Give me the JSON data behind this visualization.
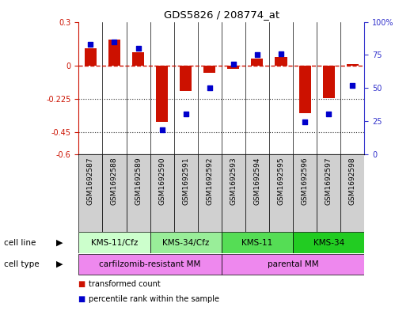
{
  "title": "GDS5826 / 208774_at",
  "samples": [
    "GSM1692587",
    "GSM1692588",
    "GSM1692589",
    "GSM1692590",
    "GSM1692591",
    "GSM1692592",
    "GSM1692593",
    "GSM1692594",
    "GSM1692595",
    "GSM1692596",
    "GSM1692597",
    "GSM1692598"
  ],
  "transformed_count": [
    0.12,
    0.18,
    0.09,
    -0.38,
    -0.17,
    -0.05,
    -0.02,
    0.05,
    0.06,
    -0.32,
    -0.22,
    0.01
  ],
  "percentile_rank": [
    83,
    85,
    80,
    18,
    30,
    50,
    68,
    75,
    76,
    24,
    30,
    52
  ],
  "ylim_left": [
    -0.6,
    0.3
  ],
  "ylim_right": [
    0,
    100
  ],
  "yticks_left": [
    0.3,
    0.0,
    -0.225,
    -0.45,
    -0.6
  ],
  "ytick_labels_left": [
    "0.3",
    "0",
    "-0.225",
    "-0.45",
    "-0.6"
  ],
  "yticks_right": [
    100,
    75,
    50,
    25,
    0
  ],
  "ytick_labels_right": [
    "100%",
    "75",
    "50",
    "25",
    "0"
  ],
  "hlines_dotted": [
    -0.225,
    -0.45
  ],
  "cell_line_groups": [
    {
      "label": "KMS-11/Cfz",
      "start": 0,
      "end": 3,
      "color": "#ccffcc"
    },
    {
      "label": "KMS-34/Cfz",
      "start": 3,
      "end": 6,
      "color": "#99ee99"
    },
    {
      "label": "KMS-11",
      "start": 6,
      "end": 9,
      "color": "#55dd55"
    },
    {
      "label": "KMS-34",
      "start": 9,
      "end": 12,
      "color": "#22cc22"
    }
  ],
  "cell_type_groups": [
    {
      "label": "carfilzomib-resistant MM",
      "start": 0,
      "end": 6,
      "color": "#ee88ee"
    },
    {
      "label": "parental MM",
      "start": 6,
      "end": 12,
      "color": "#ee88ee"
    }
  ],
  "bar_color": "#cc1100",
  "dot_color": "#0000cc",
  "bg_color": "#ffffff",
  "left_tick_color": "#cc1100",
  "right_tick_color": "#3333cc",
  "zero_line_color": "#cc1100",
  "dotted_line_color": "#333333",
  "sample_box_color": "#d0d0d0",
  "legend_bar_label": "transformed count",
  "legend_dot_label": "percentile rank within the sample",
  "cell_line_label": "cell line",
  "cell_type_label": "cell type"
}
